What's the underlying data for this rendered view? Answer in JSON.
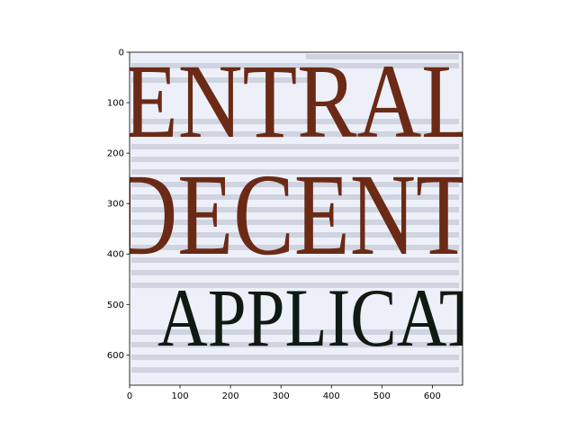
{
  "chart_data": {
    "type": "image",
    "xlim": [
      0,
      660
    ],
    "ylim": [
      660,
      0
    ],
    "x_ticks": [
      0,
      100,
      200,
      300,
      400,
      500,
      600
    ],
    "y_ticks": [
      0,
      100,
      200,
      300,
      400,
      500,
      600
    ],
    "x_tick_labels": [
      "0",
      "100",
      "200",
      "300",
      "400",
      "500",
      "600"
    ],
    "y_tick_labels": [
      "0",
      "100",
      "200",
      "300",
      "400",
      "500",
      "600"
    ],
    "title": "",
    "xlabel": "",
    "ylabel": "",
    "image_content": {
      "lines": [
        {
          "text": "ENTRAL",
          "color": "#6b2a16"
        },
        {
          "text": "DECENT",
          "color": "#6b2a16"
        },
        {
          "text": "APPLICAT",
          "color": "#0f1a12"
        }
      ],
      "background_color": "#edf0f8"
    }
  }
}
